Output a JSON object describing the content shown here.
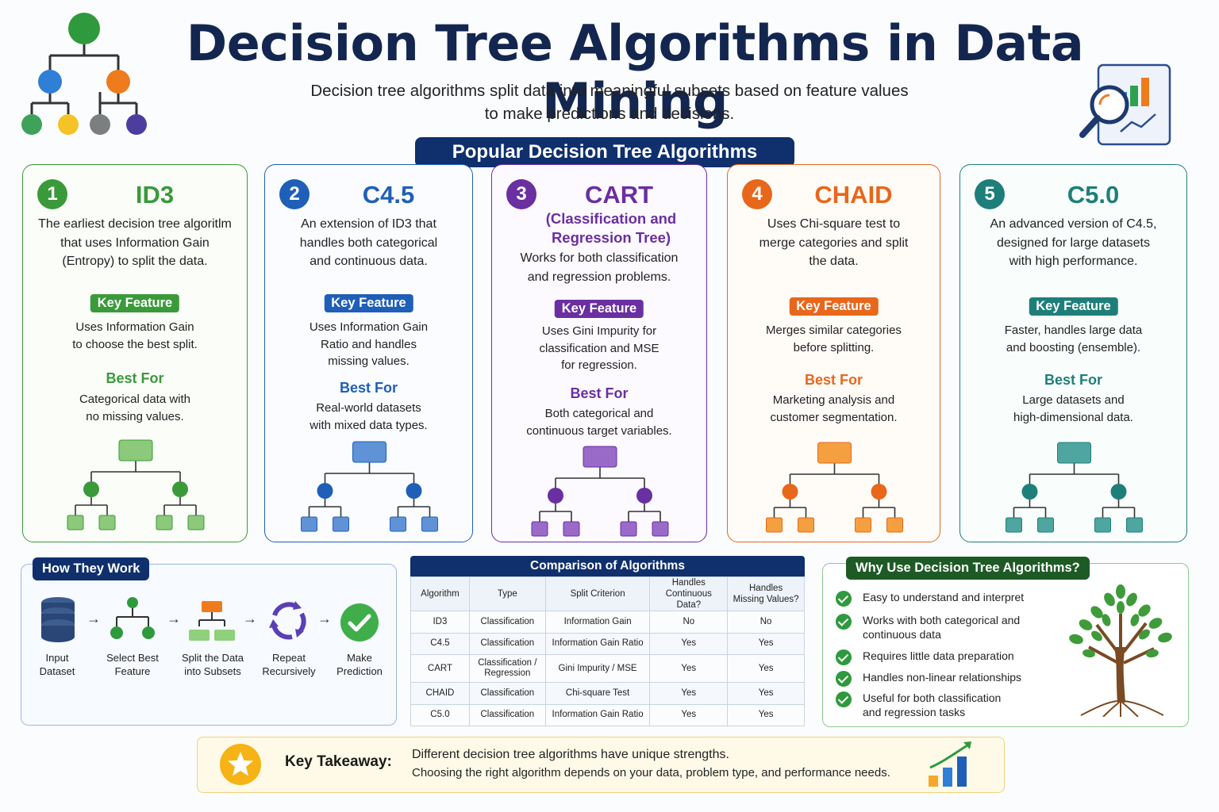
{
  "header": {
    "title": "Decision Tree Algorithms in Data Mining",
    "subtitle_line1": "Decision tree algorithms split data into meaningful subsets based on feature values",
    "subtitle_line2": "to make predictions and decisions.",
    "section_title": "Popular Decision Tree Algorithms"
  },
  "algorithms": [
    {
      "number": "1",
      "name": "ID3",
      "color": "#3a9a3a",
      "light": "#8cc97a",
      "desc": [
        "The earliest decision tree algoritlm",
        "that uses Information Gain",
        "(Entropy) to split the data."
      ],
      "key_label": "Key Feature",
      "key_text": [
        "Uses Information Gain",
        "to choose the best split."
      ],
      "best_label": "Best For",
      "best_text": [
        "Categorical data with",
        "no missing values."
      ]
    },
    {
      "number": "2",
      "name": "C4.5",
      "color": "#1f5fb8",
      "light": "#5f93d6",
      "desc": [
        "An extension of ID3 that",
        "handles both categorical",
        "and continuous data."
      ],
      "key_label": "Key Feature",
      "key_text": [
        "Uses Information Gain",
        "Ratio and handles",
        "missing values."
      ],
      "best_label": "Best For",
      "best_text": [
        "Real-world datasets",
        "with mixed data types."
      ]
    },
    {
      "number": "3",
      "name": "CART",
      "color": "#6a2fa0",
      "light": "#9a6ac8",
      "subname": [
        "(Classification and",
        "Regression Tree)"
      ],
      "desc": [
        "Works for both classification",
        "and regression problems."
      ],
      "key_label": "Key Feature",
      "key_text": [
        "Uses Gini Impurity for",
        "classification and MSE",
        "for regression."
      ],
      "best_label": "Best For",
      "best_text": [
        "Both categorical and",
        "continuous target variables."
      ]
    },
    {
      "number": "4",
      "name": "CHAID",
      "color": "#e8671b",
      "light": "#f5a040",
      "desc": [
        "Uses Chi-square test to",
        "merge categories and split",
        "the data."
      ],
      "key_label": "Key Feature",
      "key_text": [
        "Merges similar categories",
        "before splitting."
      ],
      "best_label": "Best For",
      "best_text": [
        "Marketing analysis and",
        "customer segmentation."
      ]
    },
    {
      "number": "5",
      "name": "C5.0",
      "color": "#1e7f7a",
      "light": "#4fa59f",
      "desc": [
        "An advanced version of C4.5,",
        "designed for large datasets",
        "with high performance."
      ],
      "key_label": "Key Feature",
      "key_text": [
        "Faster, handles large data",
        "and boosting (ensemble)."
      ],
      "best_label": "Best For",
      "best_text": [
        "Large datasets and",
        "high-dimensional data."
      ]
    }
  ],
  "how": {
    "title": "How They Work",
    "steps": [
      [
        "Input",
        "Dataset"
      ],
      [
        "Select Best",
        "Feature"
      ],
      [
        "Split the Data",
        "into Subsets"
      ],
      [
        "Repeat",
        "Recursively"
      ],
      [
        "Make",
        "Prediction"
      ]
    ]
  },
  "comparison": {
    "title": "Comparison of Algorithms",
    "headers": [
      [
        "Algorithm"
      ],
      [
        "Type"
      ],
      [
        "Split Criterion"
      ],
      [
        "Handles",
        "Continuous Data?"
      ],
      [
        "Handles",
        "Missing Values?"
      ]
    ],
    "rows": [
      [
        [
          "ID3"
        ],
        [
          "Classification"
        ],
        [
          "Information Gain"
        ],
        [
          "No"
        ],
        [
          "No"
        ]
      ],
      [
        [
          "C4.5"
        ],
        [
          "Classification"
        ],
        [
          "Information Gain Ratio"
        ],
        [
          "Yes"
        ],
        [
          "Yes"
        ]
      ],
      [
        [
          "CART"
        ],
        [
          "Classification /",
          "Regression"
        ],
        [
          "Gini Impurity / MSE"
        ],
        [
          "Yes"
        ],
        [
          "Yes"
        ]
      ],
      [
        [
          "CHAID"
        ],
        [
          "Classification"
        ],
        [
          "Chi-square Test"
        ],
        [
          "Yes"
        ],
        [
          "Yes"
        ]
      ],
      [
        [
          "C5.0"
        ],
        [
          "Classification"
        ],
        [
          "Information Gain Ratio"
        ],
        [
          "Yes"
        ],
        [
          "Yes"
        ]
      ]
    ]
  },
  "why": {
    "title": "Why Use Decision Tree Algorithms?",
    "items": [
      [
        "Easy to understand and interpret"
      ],
      [
        "Works with both categorical and",
        "continuous data"
      ],
      [
        "Requires little data preparation"
      ],
      [
        "Handles non-linear relationships"
      ],
      [
        "Useful for both classification",
        "and regression tasks"
      ]
    ]
  },
  "takeaway": {
    "label": "Key Takeaway:",
    "line1": "Different decision tree algorithms have unique strengths.",
    "line2": "Choosing the right algorithm depends on your data, problem type, and performance needs."
  }
}
